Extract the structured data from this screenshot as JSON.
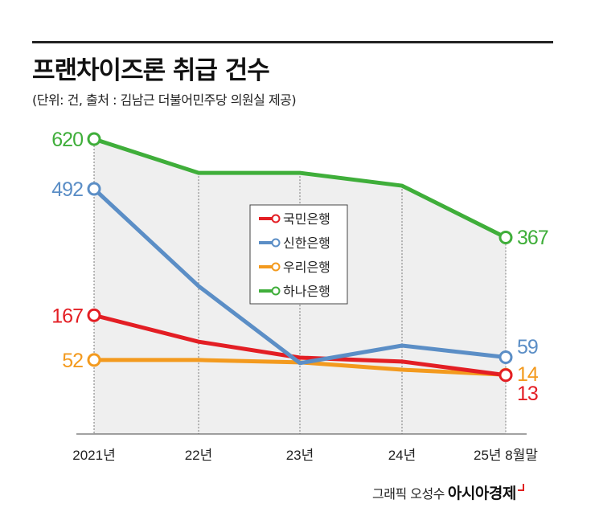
{
  "header": {
    "title": "프랜차이즈론 취급 건수",
    "subtitle": "(단위: 건, 출처 : 김남근 더불어민주당 의원실 제공)"
  },
  "footer": {
    "credit": "그래픽 오성수",
    "brand": "아시아경제"
  },
  "chart_data": {
    "type": "line",
    "title": "프랜차이즈론 취급 건수",
    "unit": "건",
    "categories": [
      "2021년",
      "22년",
      "23년",
      "24년",
      "25년 8월말"
    ],
    "ylim": [
      0,
      650
    ],
    "grid": "vertical dashed",
    "legend_position": "center",
    "series": [
      {
        "name": "국민은행",
        "color": "#e31e24",
        "values": [
          167,
          99,
          58,
          48,
          13
        ],
        "start_label": "167",
        "end_label": "13"
      },
      {
        "name": "신한은행",
        "color": "#5b8ec6",
        "values": [
          492,
          242,
          44,
          89,
          59
        ],
        "start_label": "492",
        "end_label": "59"
      },
      {
        "name": "우리은행",
        "color": "#f39a1e",
        "values": [
          52,
          52,
          46,
          27,
          14
        ],
        "start_label": "52",
        "end_label": "14"
      },
      {
        "name": "하나은행",
        "color": "#3fae3a",
        "values": [
          620,
          533,
          533,
          500,
          367
        ],
        "start_label": "620",
        "end_label": "367"
      }
    ]
  }
}
